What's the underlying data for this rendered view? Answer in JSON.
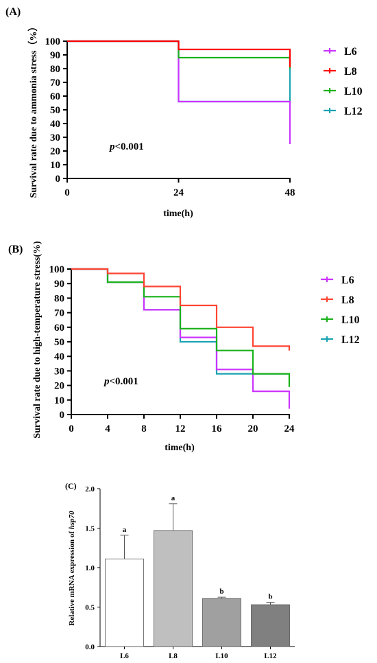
{
  "chart_data": [
    {
      "panel": "(A)",
      "type": "line",
      "xlabel": "time(h)",
      "ylabel": "Survival rate due to ammonia stress（%）",
      "annotation": {
        "p": "p",
        "text": "<0.001"
      },
      "xlim": [
        0,
        48
      ],
      "ylim": [
        0,
        100
      ],
      "xticks": [
        0,
        24,
        48
      ],
      "yticks": [
        0,
        10,
        20,
        30,
        40,
        50,
        60,
        70,
        80,
        90,
        100
      ],
      "legend_position": "right",
      "series": [
        {
          "name": "L6",
          "color": "#cc33ff",
          "points": [
            [
              0,
              100
            ],
            [
              24,
              100
            ],
            [
              24,
              56
            ],
            [
              48,
              56
            ],
            [
              48,
              25
            ]
          ]
        },
        {
          "name": "L8",
          "color": "#ff0000",
          "points": [
            [
              0,
              100
            ],
            [
              24,
              100
            ],
            [
              24,
              94
            ],
            [
              48,
              94
            ],
            [
              48,
              81
            ]
          ]
        },
        {
          "name": "L10",
          "color": "#19b219",
          "points": [
            [
              0,
              100
            ],
            [
              24,
              100
            ],
            [
              24,
              88
            ],
            [
              48,
              88
            ],
            [
              48,
              80
            ]
          ]
        },
        {
          "name": "L12",
          "color": "#1aa3b2",
          "points": [
            [
              0,
              100
            ],
            [
              24,
              100
            ],
            [
              24,
              56
            ],
            [
              48,
              56
            ],
            [
              48,
              80
            ]
          ]
        }
      ]
    },
    {
      "panel": "(B)",
      "type": "line",
      "xlabel": "time(h)",
      "ylabel": "Survival rate due to high-temperature stress(%)",
      "annotation": {
        "p": "p",
        "text": "<0.001"
      },
      "xlim": [
        0,
        24
      ],
      "ylim": [
        0,
        100
      ],
      "xticks": [
        0,
        4,
        8,
        12,
        16,
        20,
        24
      ],
      "yticks": [
        0,
        10,
        20,
        30,
        40,
        50,
        60,
        70,
        80,
        90,
        100
      ],
      "legend_position": "right",
      "series": [
        {
          "name": "L6",
          "color": "#cc33ff",
          "points": [
            [
              0,
              100
            ],
            [
              4,
              100
            ],
            [
              4,
              91
            ],
            [
              8,
              91
            ],
            [
              8,
              72
            ],
            [
              12,
              72
            ],
            [
              12,
              53
            ],
            [
              16,
              53
            ],
            [
              16,
              31
            ],
            [
              20,
              31
            ],
            [
              20,
              16
            ],
            [
              24,
              16
            ],
            [
              24,
              4
            ]
          ]
        },
        {
          "name": "L8",
          "color": "#ff4433",
          "points": [
            [
              0,
              100
            ],
            [
              4,
              100
            ],
            [
              4,
              97
            ],
            [
              8,
              97
            ],
            [
              8,
              88
            ],
            [
              12,
              88
            ],
            [
              12,
              75
            ],
            [
              16,
              75
            ],
            [
              16,
              60
            ],
            [
              20,
              60
            ],
            [
              20,
              47
            ],
            [
              24,
              47
            ],
            [
              24,
              44
            ]
          ]
        },
        {
          "name": "L10",
          "color": "#19b219",
          "points": [
            [
              0,
              100
            ],
            [
              4,
              100
            ],
            [
              4,
              91
            ],
            [
              8,
              91
            ],
            [
              8,
              81
            ],
            [
              12,
              81
            ],
            [
              12,
              59
            ],
            [
              16,
              59
            ],
            [
              16,
              44
            ],
            [
              20,
              44
            ],
            [
              20,
              28
            ],
            [
              24,
              28
            ],
            [
              24,
              19
            ]
          ]
        },
        {
          "name": "L12",
          "color": "#1aa3b2",
          "points": [
            [
              0,
              100
            ],
            [
              4,
              100
            ],
            [
              4,
              91
            ],
            [
              8,
              91
            ],
            [
              8,
              72
            ],
            [
              12,
              72
            ],
            [
              12,
              50
            ],
            [
              16,
              50
            ],
            [
              16,
              28
            ],
            [
              20,
              28
            ],
            [
              20,
              28
            ],
            [
              24,
              28
            ]
          ]
        }
      ]
    },
    {
      "panel": "(C)",
      "type": "bar",
      "ylabel_prefix": "Relative mRNA expression of ",
      "ylabel_gene": "hsp70",
      "categories": [
        "L6",
        "L8",
        "L10",
        "L12"
      ],
      "values": [
        1.11,
        1.47,
        0.61,
        0.53
      ],
      "errors": [
        0.3,
        0.34,
        0.015,
        0.03
      ],
      "sig_letters": [
        "a",
        "a",
        "b",
        "b"
      ],
      "colors": [
        "#ffffff",
        "#bfbfbf",
        "#a0a0a0",
        "#808080"
      ],
      "ylim": [
        0,
        2.0
      ],
      "yticks": [
        "0.0",
        "0.5",
        "1.0",
        "1.5",
        "2.0"
      ]
    }
  ]
}
